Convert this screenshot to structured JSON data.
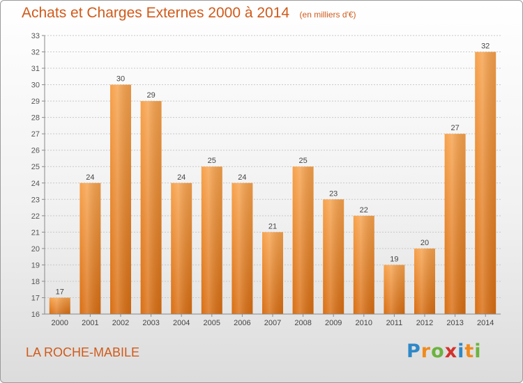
{
  "chart_data": {
    "type": "bar",
    "title": "Achats et Charges Externes 2000 à 2014",
    "subtitle": "(en milliers d'€)",
    "categories": [
      "2000",
      "2001",
      "2002",
      "2003",
      "2004",
      "2005",
      "2006",
      "2007",
      "2008",
      "2009",
      "2010",
      "2011",
      "2012",
      "2013",
      "2014"
    ],
    "values": [
      17,
      24,
      30,
      29,
      24,
      25,
      24,
      21,
      25,
      23,
      22,
      19,
      20,
      27,
      32
    ],
    "ylim": [
      16,
      33
    ],
    "yticks": [
      16,
      17,
      18,
      19,
      20,
      21,
      22,
      23,
      24,
      25,
      26,
      27,
      28,
      29,
      30,
      31,
      32,
      33
    ],
    "grid": true,
    "bar_color": "#f28f2e"
  },
  "location": "LA ROCHE-MABILE",
  "logo": {
    "letters": [
      "P",
      "r",
      "o",
      "x",
      "i",
      "t",
      "i"
    ],
    "colors": [
      "#2e88c8",
      "#f08a1c",
      "#6cb33f",
      "#d4312c",
      "#2e88c8",
      "#f08a1c",
      "#6cb33f"
    ]
  }
}
